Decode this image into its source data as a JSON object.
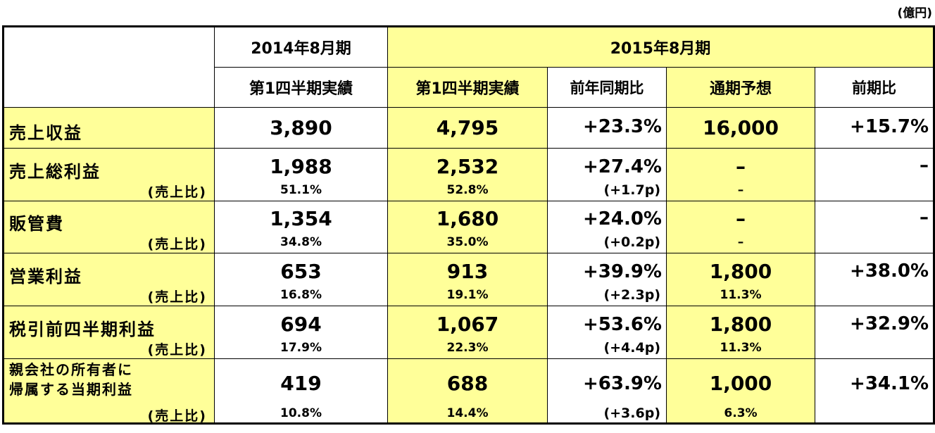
{
  "unit": "(億円)",
  "headers": {
    "fy2014": "2014年8月期",
    "fy2015": "2015年8月期",
    "q1_actual_2014": "第1四半期実績",
    "q1_actual_2015": "第1四半期実績",
    "yoy": "前年同期比",
    "full_year_forecast": "通期予想",
    "vs_prev_year": "前期比"
  },
  "rows": [
    {
      "label": "売上収益",
      "sub": "",
      "v2014": "3,890",
      "r2014": "",
      "v2015": "4,795",
      "r2015": "",
      "yoy": "+23.3%",
      "yoy_sub": "",
      "fc": "16,000",
      "fc_sub": "",
      "vp": "+15.7%"
    },
    {
      "label": "売上総利益",
      "sub": "(売上比)",
      "v2014": "1,988",
      "r2014": "51.1%",
      "v2015": "2,532",
      "r2015": "52.8%",
      "yoy": "+27.4%",
      "yoy_sub": "(+1.7p)",
      "fc": "–",
      "fc_sub": "–",
      "vp": "–"
    },
    {
      "label": "販管費",
      "sub": "(売上比)",
      "v2014": "1,354",
      "r2014": "34.8%",
      "v2015": "1,680",
      "r2015": "35.0%",
      "yoy": "+24.0%",
      "yoy_sub": "(+0.2p)",
      "fc": "–",
      "fc_sub": "–",
      "vp": "–"
    },
    {
      "label": "営業利益",
      "sub": "(売上比)",
      "v2014": "653",
      "r2014": "16.8%",
      "v2015": "913",
      "r2015": "19.1%",
      "yoy": "+39.9%",
      "yoy_sub": "(+2.3p)",
      "fc": "1,800",
      "fc_sub": "11.3%",
      "vp": "+38.0%"
    },
    {
      "label": "税引前四半期利益",
      "sub": "(売上比)",
      "v2014": "694",
      "r2014": "17.9%",
      "v2015": "1,067",
      "r2015": "22.3%",
      "yoy": "+53.6%",
      "yoy_sub": "(+4.4p)",
      "fc": "1,800",
      "fc_sub": "11.3%",
      "vp": "+32.9%"
    },
    {
      "label": "親会社の所有者に",
      "label2": "帰属する当期利益",
      "sub": "(売上比)",
      "v2014": "419",
      "r2014": "10.8%",
      "v2015": "688",
      "r2015": "14.4%",
      "yoy": "+63.9%",
      "yoy_sub": "(+3.6p)",
      "fc": "1,000",
      "fc_sub": "6.3%",
      "vp": "+34.1%"
    }
  ]
}
